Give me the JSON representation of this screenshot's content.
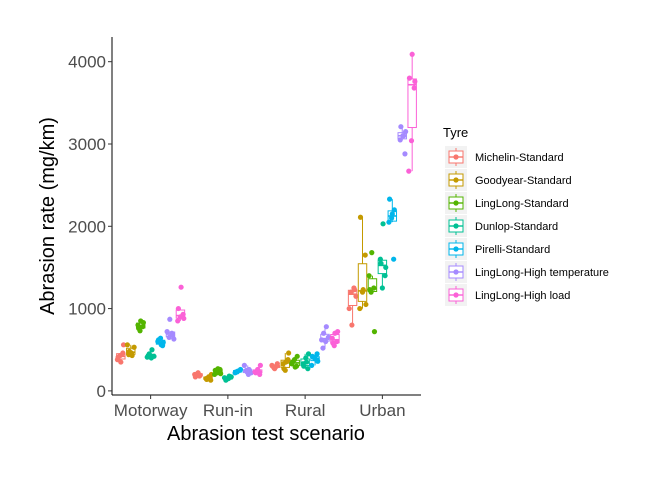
{
  "chart_data": {
    "type": "boxplot",
    "title": "",
    "xlabel": "Abrasion test scenario",
    "ylabel": "Abrasion rate (mg/km)",
    "categories": [
      "Motorway",
      "Run-in",
      "Rural",
      "Urban"
    ],
    "ylim": [
      -50,
      4300
    ],
    "yticks": [
      0,
      1000,
      2000,
      3000,
      4000
    ],
    "grid": false,
    "legend": {
      "title": "Tyre",
      "position": "right"
    },
    "series": [
      {
        "name": "Michelin-Standard",
        "color": "#F8766D",
        "points": [
          [
            380,
            430,
            460,
            410,
            350,
            560
          ],
          [
            180,
            200,
            210,
            190,
            170,
            220
          ],
          [
            280,
            300,
            310,
            270,
            330,
            300
          ],
          [
            1150,
            1200,
            1250,
            1000,
            800,
            1230
          ]
        ]
      },
      {
        "name": "Goodyear-Standard",
        "color": "#C49A00",
        "points": [
          [
            440,
            460,
            530,
            480,
            430,
            560
          ],
          [
            130,
            150,
            170,
            200,
            140,
            160
          ],
          [
            250,
            380,
            330,
            350,
            460,
            270
          ],
          [
            1000,
            1200,
            1650,
            2110,
            1230,
            1050
          ]
        ]
      },
      {
        "name": "LingLong-Standard",
        "color": "#53B400",
        "points": [
          [
            730,
            780,
            800,
            850,
            830,
            760
          ],
          [
            200,
            220,
            260,
            250,
            270,
            210
          ],
          [
            300,
            330,
            380,
            420,
            350,
            290
          ],
          [
            1200,
            1250,
            1400,
            1680,
            720,
            1230
          ]
        ]
      },
      {
        "name": "Dunlop-Standard",
        "color": "#00C094",
        "points": [
          [
            400,
            420,
            450,
            500,
            410,
            430
          ],
          [
            130,
            150,
            170,
            140,
            180,
            160
          ],
          [
            270,
            330,
            400,
            450,
            300,
            350
          ],
          [
            1250,
            1400,
            1600,
            2030,
            1500,
            1550
          ]
        ]
      },
      {
        "name": "Pirelli-Standard",
        "color": "#00B6EB",
        "points": [
          [
            550,
            600,
            640,
            590,
            620,
            560
          ],
          [
            230,
            250,
            220,
            240,
            260,
            230
          ],
          [
            310,
            400,
            450,
            420,
            390,
            360
          ],
          [
            1600,
            2050,
            2100,
            2200,
            2330,
            2150
          ]
        ]
      },
      {
        "name": "LingLong-High temperature",
        "color": "#A58AFF",
        "points": [
          [
            630,
            650,
            700,
            720,
            870,
            680
          ],
          [
            200,
            220,
            250,
            260,
            310,
            230
          ],
          [
            520,
            600,
            650,
            700,
            780,
            620
          ],
          [
            2880,
            3050,
            3100,
            3150,
            3210,
            3100
          ]
        ]
      },
      {
        "name": "LingLong-High load",
        "color": "#FB61D7",
        "points": [
          [
            850,
            900,
            930,
            1000,
            1260,
            880
          ],
          [
            200,
            230,
            260,
            310,
            220,
            240
          ],
          [
            550,
            600,
            640,
            700,
            720,
            580
          ],
          [
            2670,
            3040,
            3680,
            3800,
            4090,
            3760
          ]
        ]
      }
    ]
  }
}
